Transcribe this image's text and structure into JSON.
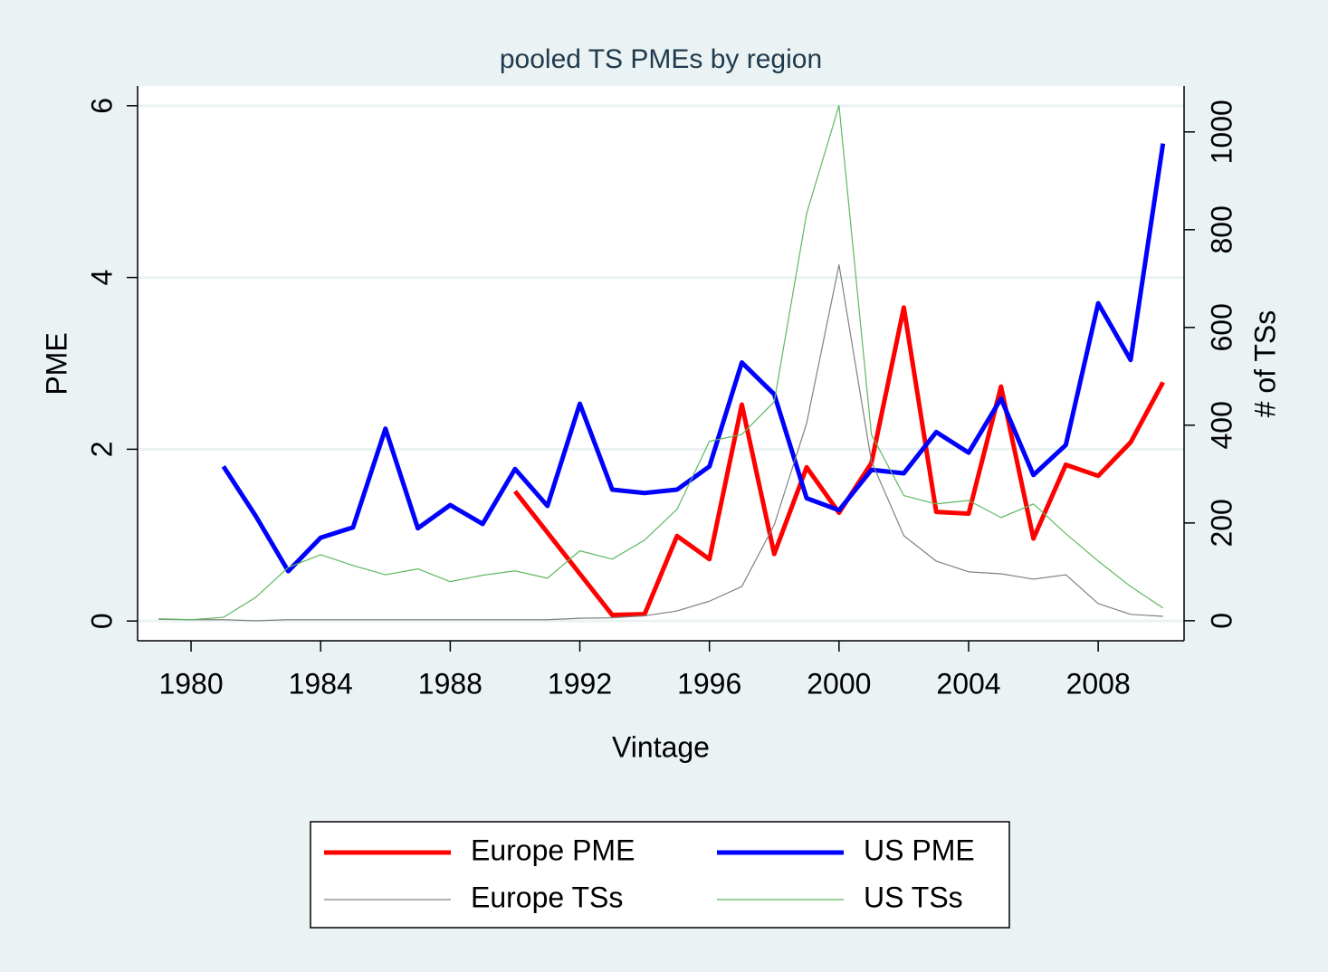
{
  "chart_data": {
    "type": "line",
    "title": "pooled TS PMEs by region",
    "xlabel": "Vintage",
    "ylabel": "PME",
    "y2label": "# of TSs",
    "x": [
      1979,
      1980,
      1981,
      1982,
      1983,
      1984,
      1985,
      1986,
      1987,
      1988,
      1989,
      1990,
      1991,
      1992,
      1993,
      1994,
      1995,
      1996,
      1997,
      1998,
      1999,
      2000,
      2001,
      2002,
      2003,
      2004,
      2005,
      2006,
      2007,
      2008,
      2009,
      2010
    ],
    "series": [
      {
        "name": "Europe PME",
        "color": "#ff0000",
        "width": 5,
        "values": [
          null,
          null,
          null,
          null,
          null,
          null,
          null,
          null,
          null,
          null,
          null,
          1.51,
          1.03,
          0.55,
          0.07,
          0.08,
          0.99,
          0.72,
          2.52,
          0.78,
          1.79,
          1.26,
          1.84,
          3.65,
          1.27,
          1.25,
          2.73,
          0.96,
          1.82,
          1.69,
          2.08,
          2.78
        ]
      },
      {
        "name": "US PME",
        "color": "#0000ff",
        "width": 5,
        "values": [
          null,
          null,
          1.8,
          1.22,
          0.58,
          0.97,
          1.09,
          2.24,
          1.08,
          1.35,
          1.13,
          1.77,
          1.34,
          2.53,
          1.53,
          1.49,
          1.53,
          1.8,
          3.01,
          2.64,
          1.43,
          1.29,
          1.76,
          1.72,
          2.2,
          1.96,
          2.59,
          1.7,
          2.05,
          3.7,
          3.04,
          5.56
        ]
      },
      {
        "name": "Europe TSs",
        "color": "#808080",
        "width": 1.2,
        "axis": "y2",
        "values": [
          3,
          2,
          2,
          0,
          2,
          2,
          2,
          2,
          2,
          2,
          2,
          2,
          2,
          5,
          6,
          10,
          20,
          40,
          70,
          196,
          404,
          728,
          326,
          174,
          122,
          100,
          96,
          85,
          94,
          35,
          13,
          9
        ]
      },
      {
        "name": "US TSs",
        "color": "#5fb85f",
        "width": 1.2,
        "axis": "y2",
        "values": [
          4,
          2,
          7,
          48,
          109,
          135,
          113,
          94,
          106,
          80,
          93,
          102,
          87,
          143,
          126,
          165,
          228,
          367,
          381,
          448,
          833,
          1054,
          381,
          256,
          239,
          246,
          211,
          239,
          178,
          122,
          70,
          26
        ]
      }
    ],
    "xlim": [
      1978.35,
      2010.65
    ],
    "xticks": [
      1980,
      1984,
      1988,
      1992,
      1996,
      2000,
      2004,
      2008
    ],
    "ylim": [
      -0.23,
      6.23
    ],
    "yticks": [
      0,
      2,
      4,
      6
    ],
    "y2lim": [
      -41,
      1094
    ],
    "y2ticks": [
      0,
      200,
      400,
      600,
      800,
      1000
    ],
    "grid": true,
    "legend": "bottom"
  }
}
